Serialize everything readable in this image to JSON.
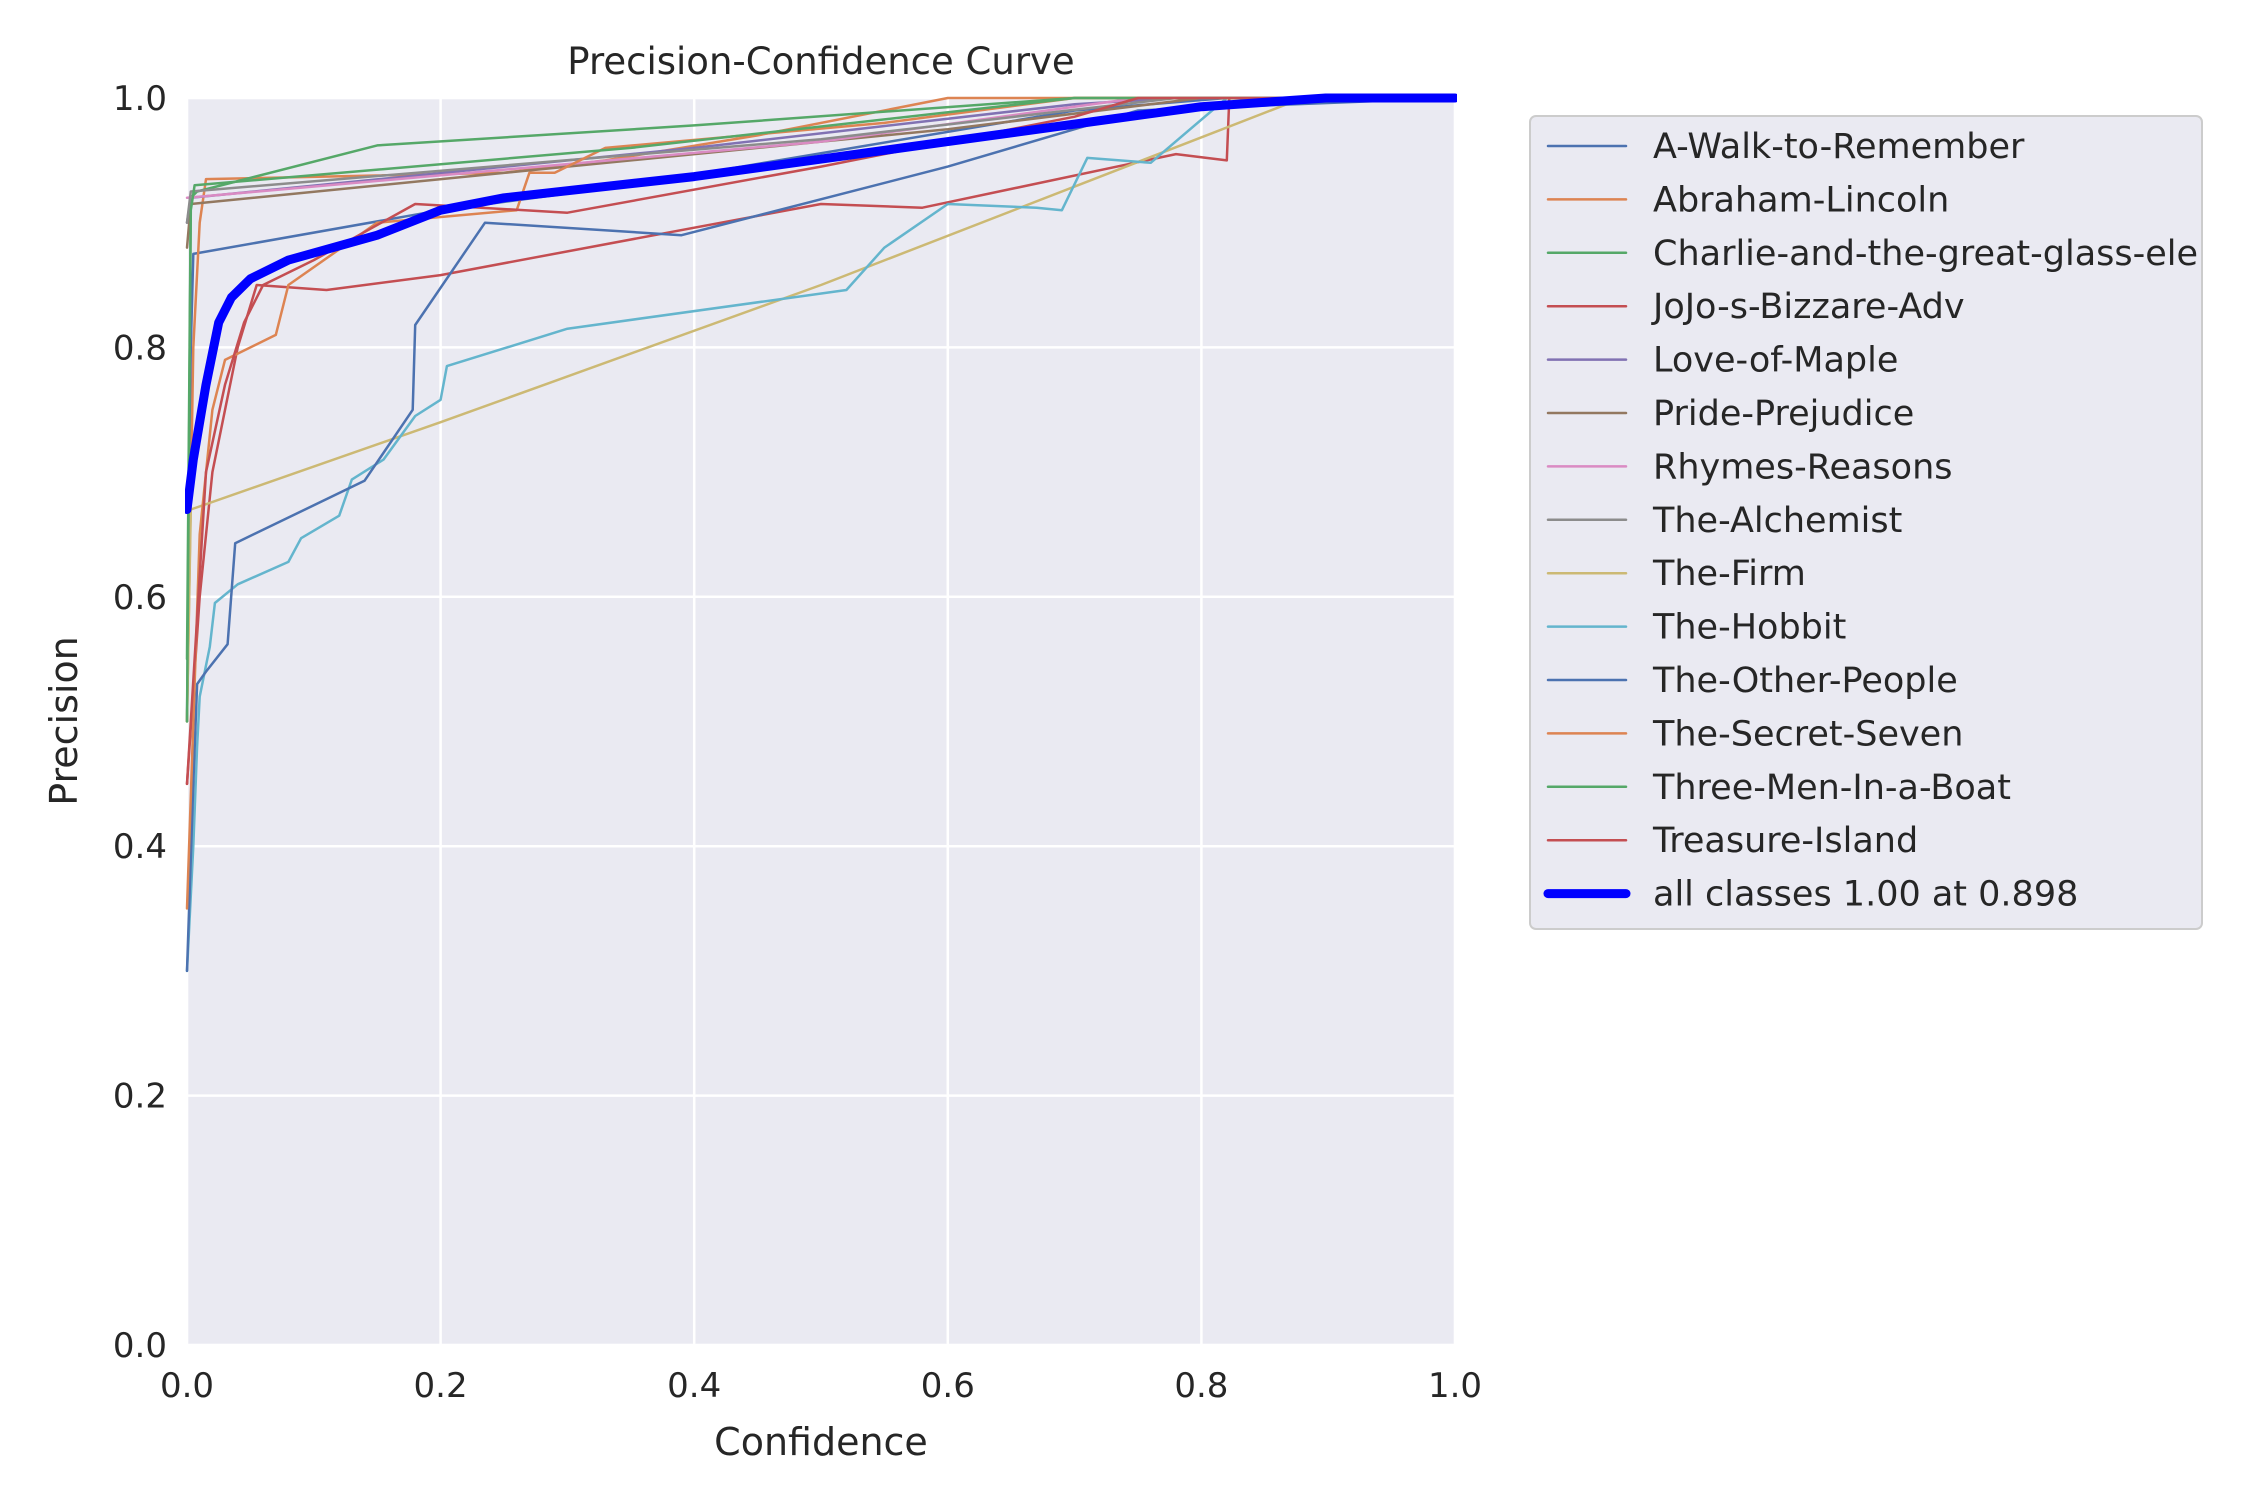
{
  "chart_data": {
    "type": "line",
    "title": "Precision-Confidence Curve",
    "xlabel": "Confidence",
    "ylabel": "Precision",
    "xlim": [
      0,
      1
    ],
    "ylim": [
      0,
      1
    ],
    "xticks": [
      "0.0",
      "0.2",
      "0.4",
      "0.6",
      "0.8",
      "1.0"
    ],
    "yticks": [
      "0.0",
      "0.2",
      "0.4",
      "0.6",
      "0.8",
      "1.0"
    ],
    "grid": true,
    "legend_position": "outside-right",
    "series": [
      {
        "name": "A-Walk-to-Remember",
        "color": "#4C72B0",
        "width": 2.5,
        "points": [
          [
            0,
            0.5
          ],
          [
            0.003,
            0.8
          ],
          [
            0.005,
            0.875
          ],
          [
            0.2,
            0.91
          ],
          [
            0.35,
            0.93
          ],
          [
            0.7,
            0.99
          ],
          [
            0.82,
            1.0
          ],
          [
            1,
            1.0
          ]
        ]
      },
      {
        "name": "Abraham-Lincoln",
        "color": "#DD8452",
        "width": 2.5,
        "points": [
          [
            0,
            0.5
          ],
          [
            0.005,
            0.8
          ],
          [
            0.01,
            0.9
          ],
          [
            0.015,
            0.935
          ],
          [
            0.25,
            0.94
          ],
          [
            0.33,
            0.95
          ],
          [
            0.45,
            0.97
          ],
          [
            0.6,
            1.0
          ],
          [
            1,
            1.0
          ]
        ]
      },
      {
        "name": "Charlie-and-the-great-glass-ele",
        "color": "#55A868",
        "width": 2.5,
        "points": [
          [
            0,
            0.55
          ],
          [
            0.003,
            0.92
          ],
          [
            0.008,
            0.925
          ],
          [
            0.15,
            0.962
          ],
          [
            0.4,
            0.978
          ],
          [
            0.7,
            1.0
          ],
          [
            1,
            1.0
          ]
        ]
      },
      {
        "name": "JoJo-s-Bizzare-Adv",
        "color": "#C44E52",
        "width": 2.5,
        "points": [
          [
            0,
            0.45
          ],
          [
            0.01,
            0.6
          ],
          [
            0.02,
            0.7
          ],
          [
            0.04,
            0.8
          ],
          [
            0.055,
            0.85
          ],
          [
            0.11,
            0.846
          ],
          [
            0.2,
            0.858
          ],
          [
            0.5,
            0.915
          ],
          [
            0.58,
            0.912
          ],
          [
            0.78,
            0.955
          ],
          [
            0.82,
            0.95
          ],
          [
            0.822,
            1.0
          ],
          [
            1,
            1.0
          ]
        ]
      },
      {
        "name": "Love-of-Maple",
        "color": "#8172B3",
        "width": 2.5,
        "points": [
          [
            0,
            0.9
          ],
          [
            0.003,
            0.92
          ],
          [
            0.4,
            0.96
          ],
          [
            0.7,
            0.995
          ],
          [
            0.78,
            1.0
          ],
          [
            1,
            1.0
          ]
        ]
      },
      {
        "name": "Pride-Prejudice",
        "color": "#937860",
        "width": 2.5,
        "points": [
          [
            0,
            0.88
          ],
          [
            0.003,
            0.915
          ],
          [
            0.3,
            0.945
          ],
          [
            0.6,
            0.975
          ],
          [
            0.8,
            1.0
          ],
          [
            1,
            1.0
          ]
        ]
      },
      {
        "name": "Rhymes-Reasons",
        "color": "#DA8BC3",
        "width": 2.5,
        "points": [
          [
            0,
            0.92
          ],
          [
            0.5,
            0.965
          ],
          [
            0.75,
            1.0
          ],
          [
            1,
            1.0
          ]
        ]
      },
      {
        "name": "The-Alchemist",
        "color": "#8C8C8C",
        "width": 2.5,
        "points": [
          [
            0,
            0.9
          ],
          [
            0.003,
            0.925
          ],
          [
            0.5,
            0.967
          ],
          [
            0.78,
            1.0
          ],
          [
            1,
            1.0
          ]
        ]
      },
      {
        "name": "The-Firm",
        "color": "#CCB974",
        "width": 2.5,
        "points": [
          [
            0,
            0.5
          ],
          [
            0.003,
            0.67
          ],
          [
            0.2,
            0.74
          ],
          [
            0.5,
            0.85
          ],
          [
            0.88,
            1.0
          ],
          [
            1,
            1.0
          ]
        ]
      },
      {
        "name": "The-Hobbit",
        "color": "#64B5CD",
        "width": 2.5,
        "points": [
          [
            0,
            0.3
          ],
          [
            0.005,
            0.4
          ],
          [
            0.008,
            0.48
          ],
          [
            0.01,
            0.52
          ],
          [
            0.018,
            0.56
          ],
          [
            0.022,
            0.595
          ],
          [
            0.04,
            0.61
          ],
          [
            0.08,
            0.628
          ],
          [
            0.09,
            0.647
          ],
          [
            0.12,
            0.665
          ],
          [
            0.13,
            0.694
          ],
          [
            0.155,
            0.71
          ],
          [
            0.18,
            0.745
          ],
          [
            0.2,
            0.758
          ],
          [
            0.205,
            0.785
          ],
          [
            0.3,
            0.815
          ],
          [
            0.52,
            0.846
          ],
          [
            0.55,
            0.88
          ],
          [
            0.6,
            0.915
          ],
          [
            0.67,
            0.912
          ],
          [
            0.69,
            0.91
          ],
          [
            0.71,
            0.952
          ],
          [
            0.76,
            0.948
          ],
          [
            0.82,
            1.0
          ],
          [
            1,
            1.0
          ]
        ]
      },
      {
        "name": "The-Other-People",
        "color": "#4C72B0",
        "width": 2.5,
        "points": [
          [
            0,
            0.3
          ],
          [
            0.005,
            0.45
          ],
          [
            0.008,
            0.53
          ],
          [
            0.015,
            0.54
          ],
          [
            0.032,
            0.562
          ],
          [
            0.038,
            0.643
          ],
          [
            0.14,
            0.693
          ],
          [
            0.178,
            0.75
          ],
          [
            0.18,
            0.818
          ],
          [
            0.235,
            0.9
          ],
          [
            0.39,
            0.89
          ],
          [
            0.6,
            0.945
          ],
          [
            0.75,
            0.99
          ],
          [
            1,
            1.0
          ]
        ]
      },
      {
        "name": "The-Secret-Seven",
        "color": "#DD8452",
        "width": 2.5,
        "points": [
          [
            0,
            0.35
          ],
          [
            0.01,
            0.65
          ],
          [
            0.02,
            0.75
          ],
          [
            0.03,
            0.79
          ],
          [
            0.07,
            0.81
          ],
          [
            0.08,
            0.85
          ],
          [
            0.15,
            0.9
          ],
          [
            0.26,
            0.91
          ],
          [
            0.27,
            0.94
          ],
          [
            0.29,
            0.94
          ],
          [
            0.33,
            0.96
          ],
          [
            0.55,
            0.98
          ],
          [
            0.7,
            1.0
          ],
          [
            1,
            1.0
          ]
        ]
      },
      {
        "name": "Three-Men-In-a-Boat",
        "color": "#55A868",
        "width": 2.5,
        "points": [
          [
            0,
            0.5
          ],
          [
            0.003,
            0.91
          ],
          [
            0.006,
            0.93
          ],
          [
            0.35,
            0.96
          ],
          [
            0.7,
            1.0
          ],
          [
            1,
            1.0
          ]
        ]
      },
      {
        "name": "Treasure-Island",
        "color": "#C44E52",
        "width": 2.5,
        "points": [
          [
            0,
            0.45
          ],
          [
            0.015,
            0.7
          ],
          [
            0.03,
            0.77
          ],
          [
            0.045,
            0.82
          ],
          [
            0.06,
            0.85
          ],
          [
            0.1,
            0.87
          ],
          [
            0.18,
            0.915
          ],
          [
            0.3,
            0.908
          ],
          [
            0.5,
            0.945
          ],
          [
            0.7,
            0.985
          ],
          [
            0.75,
            1.0
          ],
          [
            1,
            1.0
          ]
        ]
      },
      {
        "name": "all classes 1.00 at 0.898",
        "color": "#0000FF",
        "width": 9,
        "points": [
          [
            0,
            0.67
          ],
          [
            0.005,
            0.71
          ],
          [
            0.015,
            0.77
          ],
          [
            0.025,
            0.82
          ],
          [
            0.035,
            0.84
          ],
          [
            0.05,
            0.855
          ],
          [
            0.08,
            0.87
          ],
          [
            0.15,
            0.89
          ],
          [
            0.2,
            0.91
          ],
          [
            0.25,
            0.92
          ],
          [
            0.4,
            0.937
          ],
          [
            0.6,
            0.965
          ],
          [
            0.8,
            0.993
          ],
          [
            0.898,
            1.0
          ],
          [
            1,
            1.0
          ]
        ]
      }
    ]
  }
}
